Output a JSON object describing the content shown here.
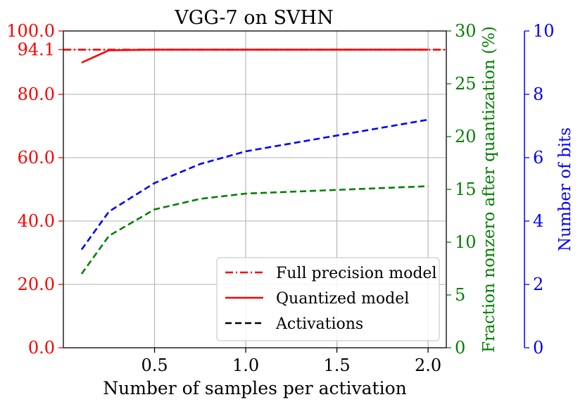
{
  "chart_data": {
    "type": "line",
    "title": "VGG-7 on SVHN",
    "xlabel": "Number of samples per activation",
    "xlim": [
      0.0,
      2.1
    ],
    "xticks": [
      0.5,
      1.0,
      1.5,
      2.0
    ],
    "xtick_labels": [
      "0.5",
      "1.0",
      "1.5",
      "2.0"
    ],
    "grid": true,
    "axes": {
      "left": {
        "label": "",
        "color": "#ff0000",
        "ylim": [
          0,
          100
        ],
        "ticks": [
          0,
          20,
          40,
          60,
          80,
          94.1,
          100
        ],
        "tick_labels": [
          "0.0",
          "20.0",
          "40.0",
          "60.0",
          "80.0",
          "94.1",
          "100.0"
        ]
      },
      "right1": {
        "label": "Fraction nonzero after quantization (%)",
        "color": "#008000",
        "ylim": [
          0,
          30
        ],
        "ticks": [
          0,
          5,
          10,
          15,
          20,
          25,
          30
        ],
        "tick_labels": [
          "0",
          "5",
          "10",
          "15",
          "20",
          "25",
          "30"
        ]
      },
      "right2": {
        "label": "Number of bits",
        "color": "#0000ff",
        "ylim": [
          0,
          10
        ],
        "ticks": [
          0,
          2,
          4,
          6,
          8,
          10
        ],
        "tick_labels": [
          "0",
          "2",
          "4",
          "6",
          "8",
          "10"
        ]
      }
    },
    "series": [
      {
        "name": "Full precision model",
        "axis": "left",
        "color": "#ff0000",
        "style": "dashdot",
        "x": [
          0.0,
          2.1
        ],
        "y": [
          94.1,
          94.1
        ]
      },
      {
        "name": "Quantized model",
        "axis": "left",
        "color": "#ff0000",
        "style": "solid",
        "x": [
          0.1,
          0.25,
          0.5,
          0.75,
          1.0,
          1.25,
          1.5,
          1.75,
          2.0
        ],
        "y": [
          90.0,
          93.9,
          94.1,
          94.1,
          94.1,
          94.1,
          94.1,
          94.1,
          94.1
        ]
      },
      {
        "name": "Fraction nonzero",
        "axis": "right1",
        "color": "#008000",
        "style": "dashed",
        "x": [
          0.1,
          0.25,
          0.5,
          0.75,
          1.0,
          2.0
        ],
        "y": [
          7.0,
          10.6,
          13.1,
          14.1,
          14.6,
          15.3
        ]
      },
      {
        "name": "Number of bits",
        "axis": "right2",
        "color": "#0000ff",
        "style": "dashed",
        "x": [
          0.1,
          0.25,
          0.5,
          0.75,
          1.0,
          2.0
        ],
        "y": [
          3.1,
          4.3,
          5.2,
          5.8,
          6.2,
          7.2
        ]
      }
    ],
    "legend": {
      "placement": "lower-right",
      "entries": [
        {
          "label": "Full precision model",
          "color": "#ff0000",
          "style": "dashdot"
        },
        {
          "label": "Quantized model",
          "color": "#ff0000",
          "style": "solid"
        },
        {
          "label": "Activations",
          "color": "#000000",
          "style": "dashed"
        }
      ]
    }
  }
}
